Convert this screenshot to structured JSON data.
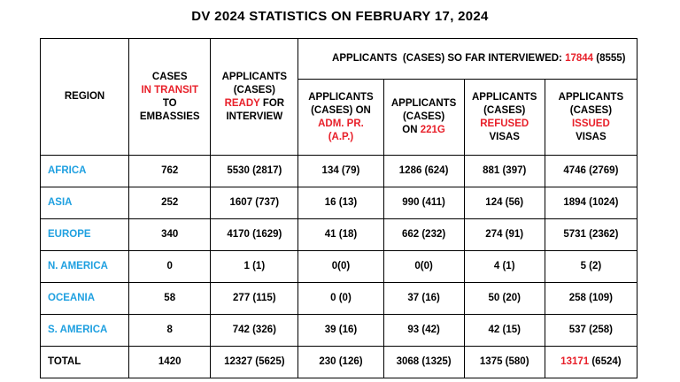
{
  "title": "DV 2024 STATISTICS ON FEBRUARY 17, 2024",
  "header": {
    "region": "REGION",
    "transit": {
      "l1": "CASES",
      "l2": "IN TRANSIT",
      "l3": "TO",
      "l4": "EMBASSIES"
    },
    "ready": {
      "l1": "APPLICANTS",
      "l2": "(CASES)",
      "l3a": "READY",
      "l3b": " FOR",
      "l4": "INTERVIEW"
    },
    "interviewed": {
      "prefix": "APPLICANTS  (CASES) SO FAR INTERVIEWED: ",
      "count": "17844",
      "suffix": " (8555)"
    },
    "ap": {
      "l1": "APPLICANTS",
      "l2": "(CASES) ON",
      "l3": "ADM. PR.",
      "l4": "(A.P.)"
    },
    "g221": {
      "l1": "APPLICANTS",
      "l2": "(CASES)",
      "l3a": "ON ",
      "l3b": "221G"
    },
    "refused": {
      "l1": "APPLICANTS",
      "l2": "(CASES)",
      "l3": "REFUSED",
      "l4": "VISAS"
    },
    "issued": {
      "l1": "APPLICANTS",
      "l2": "(CASES)",
      "l3": "ISSUED",
      "l4": "VISAS"
    }
  },
  "rows": [
    {
      "region": "AFRICA",
      "transit": "762",
      "ready": "5530 (2817)",
      "ap": "134 (79)",
      "g221": "1286 (624)",
      "refused": "881 (397)",
      "issued": "4746 (2769)"
    },
    {
      "region": "ASIA",
      "transit": "252",
      "ready": "1607 (737)",
      "ap": "16 (13)",
      "g221": "990 (411)",
      "refused": "124 (56)",
      "issued": "1894 (1024)"
    },
    {
      "region": "EUROPE",
      "transit": "340",
      "ready": "4170 (1629)",
      "ap": "41 (18)",
      "g221": "662 (232)",
      "refused": "274 (91)",
      "issued": "5731 (2362)"
    },
    {
      "region": "N. AMERICA",
      "transit": "0",
      "ready": "1 (1)",
      "ap": "0(0)",
      "g221": "0(0)",
      "refused": "4 (1)",
      "issued": "5 (2)"
    },
    {
      "region": "OCEANIA",
      "transit": "58",
      "ready": "277 (115)",
      "ap": "0 (0)",
      "g221": "37 (16)",
      "refused": "50 (20)",
      "issued": "258 (109)"
    },
    {
      "region": "S. AMERICA",
      "transit": "8",
      "ready": "742 (326)",
      "ap": "39 (16)",
      "g221": "93 (42)",
      "refused": "42 (15)",
      "issued": "537 (258)"
    }
  ],
  "total": {
    "region": "TOTAL",
    "transit": "1420",
    "ready": "12327 (5625)",
    "ap": "230 (126)",
    "g221": "3068 (1325)",
    "refused": "1375 (580)",
    "issued_count": "13171",
    "issued_rest": " (6524)"
  },
  "colors": {
    "region_link": "#1fa0e0",
    "highlight_red": "#e8202a"
  }
}
